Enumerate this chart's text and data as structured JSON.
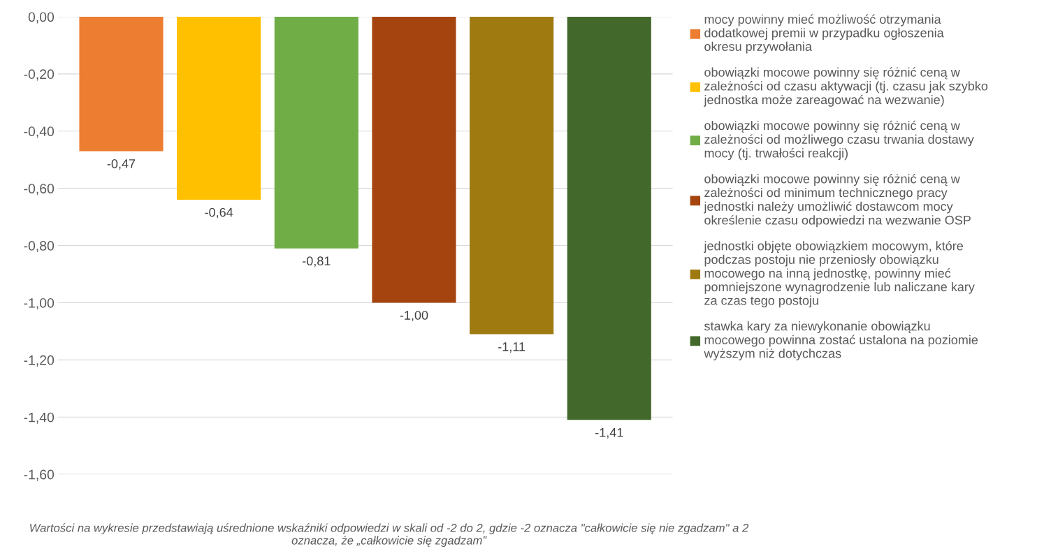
{
  "chart_data": {
    "type": "bar",
    "categories": [
      null
    ],
    "series": [
      {
        "name": "mocy powinny mieć możliwość otrzymania\ndodatkowej premii w przypadku ogłoszenia\nokresu przywołania",
        "color": "#ed7d31",
        "values": [
          -0.47
        ],
        "value_labels": [
          "-0,47"
        ]
      },
      {
        "name": "obowiązki mocowe powinny się różnić ceną w\nzależności od czasu aktywacji (tj. czasu jak szybko\njednostka może zareagować na wezwanie)",
        "color": "#ffc000",
        "values": [
          -0.64
        ],
        "value_labels": [
          "-0,64"
        ]
      },
      {
        "name": "obowiązki mocowe powinny się różnić ceną w\nzależności od możliwego czasu trwania dostawy\nmocy (tj. trwałości reakcji)",
        "color": "#70ad47",
        "values": [
          -0.81
        ],
        "value_labels": [
          "-0,81"
        ]
      },
      {
        "name": "obowiązki mocowe powinny się różnić ceną w\nzależności od minimum technicznego pracy\njednostki należy umożliwić dostawcom mocy\nokreślenie czasu odpowiedzi na wezwanie OSP",
        "color": "#a5440f",
        "values": [
          -1.0
        ],
        "value_labels": [
          "-1,00"
        ]
      },
      {
        "name": "jednostki objęte obowiązkiem mocowym, które\npodczas postoju nie przeniosły obowiązku\nmocowego na inną jednostkę, powinny mieć\npomniejszone wynagrodzenie lub naliczane kary\nza czas tego postoju",
        "color": "#9e7a10",
        "values": [
          -1.11
        ],
        "value_labels": [
          "-1,11"
        ]
      },
      {
        "name": "stawka kary za niewykonanie obowiązku\nmocowego powinna zostać ustalona na poziomie\nwyższym niż dotychczas",
        "color": "#43682b",
        "values": [
          -1.41
        ],
        "value_labels": [
          "-1,41"
        ]
      }
    ],
    "ylim": [
      -1.6,
      0
    ],
    "yticks": [
      {
        "value": 0,
        "label": "0,00"
      },
      {
        "value": -0.2,
        "label": "-0,20"
      },
      {
        "value": -0.4,
        "label": "-0,40"
      },
      {
        "value": -0.6,
        "label": "-0,60"
      },
      {
        "value": -0.8,
        "label": "-0,80"
      },
      {
        "value": -1.0,
        "label": "-1,00"
      },
      {
        "value": -1.2,
        "label": "-1,20"
      },
      {
        "value": -1.4,
        "label": "-1,40"
      },
      {
        "value": -1.6,
        "label": "-1,60"
      }
    ],
    "grid": "y",
    "legend": "right",
    "annotations": [
      "Wartości na wykresie przedstawiają uśrednione wskaźniki odpowiedzi w skali od -2 do 2, gdzie -2 oznacza \"całkowicie się nie zgadzam\" a 2\noznacza, że „całkowicie się zgadzam”"
    ]
  }
}
